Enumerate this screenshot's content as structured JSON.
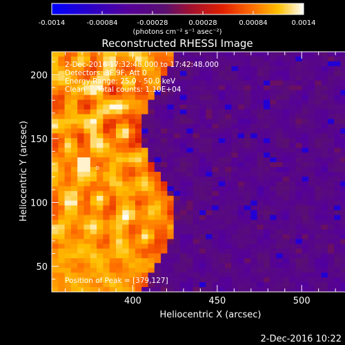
{
  "colorbar": {
    "tick_labels": [
      "-0.0014",
      "-0.00084",
      "-0.00028",
      "0.00028",
      "0.00084",
      "0.0014"
    ],
    "min": -0.0014,
    "max": 0.0014,
    "unit_label": "(photons cm⁻² s⁻¹ asec⁻²)",
    "colormap": "blue-purple-red-orange-yellow-white (RHESSI color table)"
  },
  "title": "Reconstructed RHESSI Image",
  "annotations": {
    "time_range": "2-Dec-2016 17:32:48.000 to 17:42:48.000",
    "detectors": "Detectors: 3F 9F, Att 0",
    "energy_range": "Energy Range: 25.0 - 50.0 keV",
    "clean_counts": "Clean     Total counts: 1.10E+04",
    "peak_position": "Position of Peak = [379,127]"
  },
  "footer_timestamp": "2-Dec-2016 10:22",
  "chart_data": {
    "type": "heatmap",
    "title": "Reconstructed RHESSI Image",
    "xlabel": "Heliocentric X (arcsec)",
    "ylabel": "Heliocentric Y (arcsec)",
    "xlim": [
      352,
      542
    ],
    "ylim": [
      30,
      218
    ],
    "x_ticks": [
      400,
      450,
      500
    ],
    "y_ticks": [
      50,
      100,
      150,
      200
    ],
    "peak": {
      "x": 379,
      "y": 127
    },
    "bright_region": "left side (x < ~455 arcsec), ring-like cleaned structures",
    "dark_region": "right side, purple/blue background with mottled noise",
    "colorbar_range": [
      -0.0014,
      0.0014
    ]
  }
}
